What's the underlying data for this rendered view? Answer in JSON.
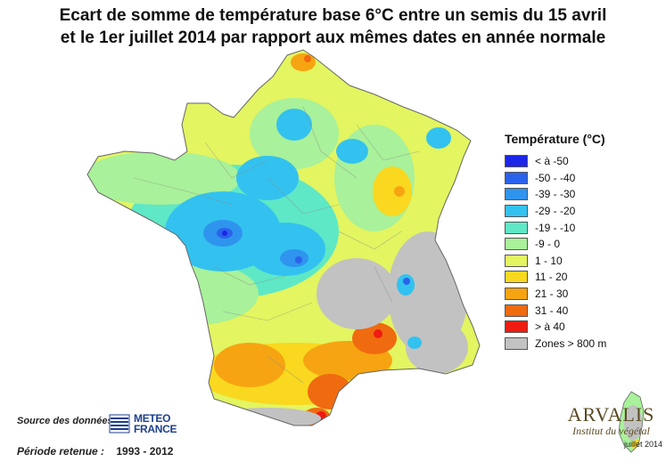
{
  "title": {
    "line1": "Ecart de somme de température base 6°C entre un semis du 15 avril",
    "line2": "et le 1er juillet 2014 par rapport aux mêmes dates en année normale"
  },
  "legend": {
    "title": "Température (°C)",
    "items": [
      {
        "label": "< à -50",
        "color": "#1b26e6"
      },
      {
        "label": "-50 - -40",
        "color": "#2b62ec"
      },
      {
        "label": "-39 - -30",
        "color": "#2f94ee"
      },
      {
        "label": "-29 - -20",
        "color": "#33c2ef"
      },
      {
        "label": "-19 - -10",
        "color": "#5fe8c6"
      },
      {
        "label": "-9 - 0",
        "color": "#a9f19a"
      },
      {
        "label": "1 - 10",
        "color": "#e3f560"
      },
      {
        "label": "11 - 20",
        "color": "#f9d81f"
      },
      {
        "label": "21 - 30",
        "color": "#f6a412"
      },
      {
        "label": "31 - 40",
        "color": "#f06a10"
      },
      {
        "label": "> à 40",
        "color": "#ee1c12"
      },
      {
        "label": "Zones > 800 m",
        "color": "#c2c2c2"
      }
    ]
  },
  "footer": {
    "source_label": "Source des données",
    "meteo_line1": "METEO",
    "meteo_line2": "FRANCE",
    "periode_label": "Période retenue :",
    "periode_value": "1993 - 2012"
  },
  "arvalis": {
    "brand": "ARVALIS",
    "subtitle": "Institut du végétal",
    "date": "juillet 2014"
  }
}
